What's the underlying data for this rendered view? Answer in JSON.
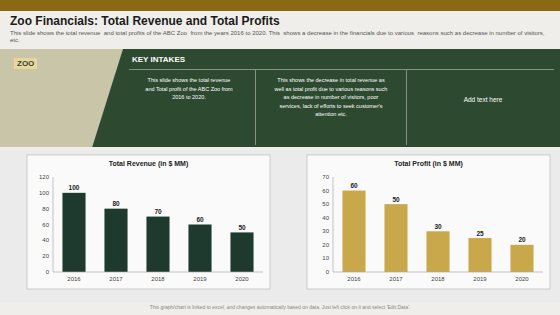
{
  "title": "Zoo Financials: Total Revenue and Total Profits",
  "subtitle": "This slide shows the total revenue  and total profits of the ABC Zoo  from the years 2016 to 2020. This  shows a decrease in the financials due to various  reasons such as decrease in number of visitors,  etc.",
  "annotations": [
    "ZOO",
    "KEY INTAKES",
    "This slide shows the total revenue\nand Total profit of the ABC Zoo from\n2016 to 2020.",
    "This shows the decrease in total revenue as\nwell as total profit due to various reasons such\nas decrease in number of visitors, poor\nservices, lack of efforts to seek customer's\nattention etc.",
    "Add text here",
    "This graph/chart is linked to excel, and changes automatically based on data. Just left click on it and select 'Edit Data'."
  ],
  "chart_data": [
    {
      "type": "bar",
      "title": "Total Revenue (in $ MM)",
      "categories": [
        "2016",
        "2017",
        "2018",
        "2019",
        "2020"
      ],
      "values": [
        100,
        80,
        70,
        60,
        50
      ],
      "color": "#1e3a2f",
      "ylim": [
        0,
        120
      ],
      "yticks": [
        0,
        20,
        40,
        60,
        80,
        100,
        120
      ],
      "grid": false,
      "data_labels": true
    },
    {
      "type": "bar",
      "title": "Total Profit (in $ MM)",
      "categories": [
        "2016",
        "2017",
        "2018",
        "2019",
        "2020"
      ],
      "values": [
        60,
        50,
        30,
        25,
        20
      ],
      "color": "#c9a84c",
      "ylim": [
        0,
        70
      ],
      "yticks": [
        0,
        10,
        20,
        30,
        40,
        50,
        60,
        70
      ],
      "grid": false,
      "data_labels": true
    }
  ]
}
